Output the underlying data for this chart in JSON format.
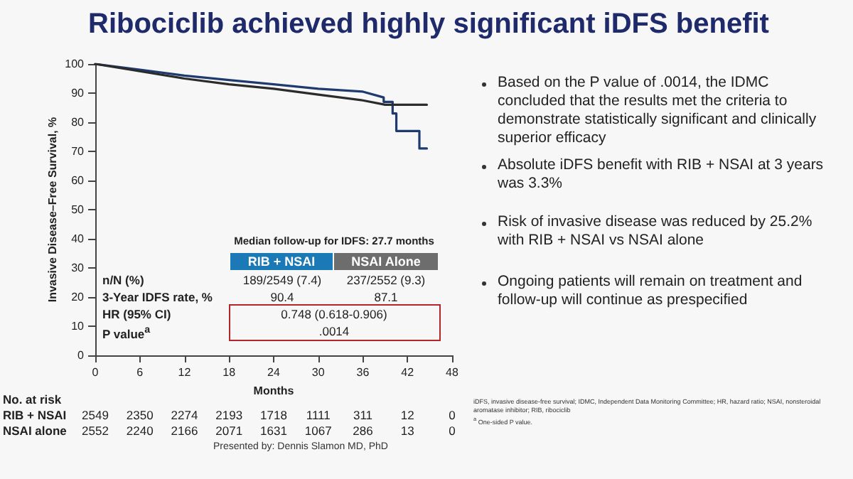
{
  "chart_data": {
    "type": "line",
    "title": "Ribociclib achieved highly significant iDFS benefit",
    "xlabel": "Months",
    "ylabel": "Invasive Disease–Free Survival, %",
    "x": [
      0,
      6,
      12,
      18,
      24,
      30,
      36,
      38.8,
      38.8,
      40,
      40,
      40.5,
      40.5,
      43.6,
      43.6,
      44.6
    ],
    "series": [
      {
        "color": "#1f3a6e",
        "values": [
          100,
          98,
          96,
          94.5,
          93,
          91.5,
          90.5,
          88.5,
          87,
          87,
          83,
          83,
          77,
          77,
          71,
          71
        ]
      },
      {
        "color": "#2b2b2b",
        "x": [
          0,
          6,
          12,
          18,
          24,
          30,
          36,
          39,
          44.6
        ],
        "values": [
          100,
          97.5,
          95,
          93,
          91.5,
          89.5,
          87.5,
          86,
          86
        ]
      }
    ],
    "xlim": [
      0,
      48
    ],
    "xticks": [
      0,
      6,
      12,
      18,
      24,
      30,
      36,
      42,
      48
    ],
    "ylim": [
      0,
      100
    ],
    "yticks": [
      0,
      10,
      20,
      30,
      40,
      50,
      60,
      70,
      80,
      90,
      100
    ],
    "grid": false,
    "marker": "none",
    "line_style": "solid",
    "annotations": [
      "Median follow-up for IDFS: 27.7 months",
      "RIB + NSAI",
      "NSAI Alone",
      "n/N (%)",
      "189/2549 (7.4)",
      "237/2552 (9.3)",
      "3-Year IDFS rate, %",
      "90.4",
      "87.1",
      "HR (95% CI)",
      "0.748 (0.618-0.906)",
      "P value$^{a}$",
      ".0014",
      "No. at risk",
      "RIB + NSAI",
      "2549",
      "2350",
      "2274",
      "2193",
      "1718",
      "1111",
      "311",
      "12",
      "0",
      "NSAI alone",
      "2552",
      "2240",
      "2166",
      "2071",
      "1631",
      "1067",
      "286",
      "13",
      "0",
      "Based on the P value of .0014, the IDMC concluded that the results met the criteria to demonstrate statistically significant and clinically superior efficacy",
      "Absolute iDFS benefit with RIB + NSAI at 3 years was 3.3%",
      "Risk of invasive disease was reduced by 25.2% with RIB + NSAI vs NSAI alone",
      "Ongoing patients will remain on treatment and follow-up will continue as prespecified",
      "iDFS, invasive disease-free survival; IDMC, Independent Data Monitoring Committee; HR, hazard ratio; NSAI, nonsteroidal aromatase inhibitor; RIB, ribociclib",
      "$^{a}$ One-sided P value.",
      "Presented by: Dennis Slamon MD, PhD"
    ]
  }
}
